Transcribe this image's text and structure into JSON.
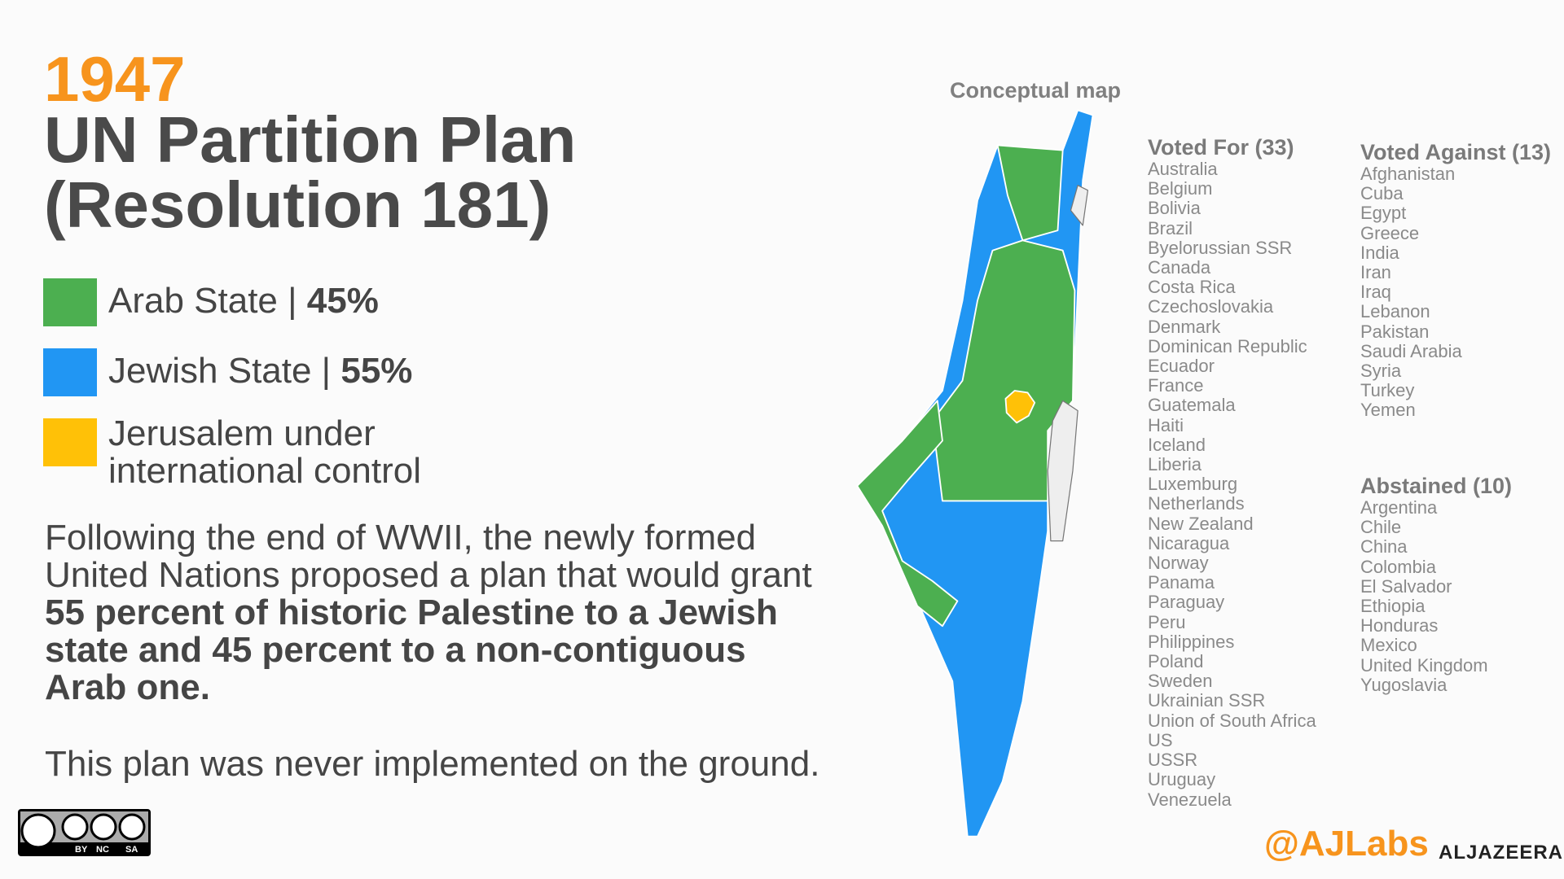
{
  "header": {
    "year": "1947",
    "title_line1": "UN Partition Plan",
    "title_line2": "(Resolution 181)"
  },
  "legend": [
    {
      "label": "Arab State |",
      "share": "45%"
    },
    {
      "label": "Jewish State |",
      "share": "55%"
    },
    {
      "label_line1": "Jerusalem under",
      "label_line2": "international control"
    }
  ],
  "paragraph": {
    "plain": "Following the end of WWII, the newly formed United Nations proposed a plan that would grant ",
    "bold": "55 percent of historic Palestine to a Jewish state and 45 percent to a non-contiguous Arab one."
  },
  "note": "This plan was never implemented on the ground.",
  "map": {
    "label": "Conceptual map"
  },
  "votes": {
    "for": {
      "heading": "Voted For (33)",
      "countries": [
        "Australia",
        "Belgium",
        "Bolivia",
        "Brazil",
        "Byelorussian SSR",
        "Canada",
        "Costa Rica",
        "Czechoslovakia",
        "Denmark",
        "Dominican Republic",
        "Ecuador",
        "France",
        "Guatemala",
        "Haiti",
        "Iceland",
        "Liberia",
        "Luxemburg",
        "Netherlands",
        "New Zealand",
        "Nicaragua",
        "Norway",
        "Panama",
        "Paraguay",
        "Peru",
        "Philippines",
        "Poland",
        "Sweden",
        "Ukrainian SSR",
        "Union of South Africa",
        "US",
        "USSR",
        "Uruguay",
        "Venezuela"
      ]
    },
    "against": {
      "heading": "Voted Against (13)",
      "countries": [
        "Afghanistan",
        "Cuba",
        "Egypt",
        "Greece",
        "India",
        "Iran",
        "Iraq",
        "Lebanon",
        "Pakistan",
        "Saudi Arabia",
        "Syria",
        "Turkey",
        "Yemen"
      ]
    },
    "abstained": {
      "heading": "Abstained (10)",
      "countries": [
        "Argentina",
        "Chile",
        "China",
        "Colombia",
        "El Salvador",
        "Ethiopia",
        "Honduras",
        "Mexico",
        "United Kingdom",
        "Yugoslavia"
      ]
    }
  },
  "license": [
    "BY",
    "NC",
    "SA"
  ],
  "footer": {
    "handle": "@AJLabs",
    "brand": "ALJAZEERA"
  }
}
